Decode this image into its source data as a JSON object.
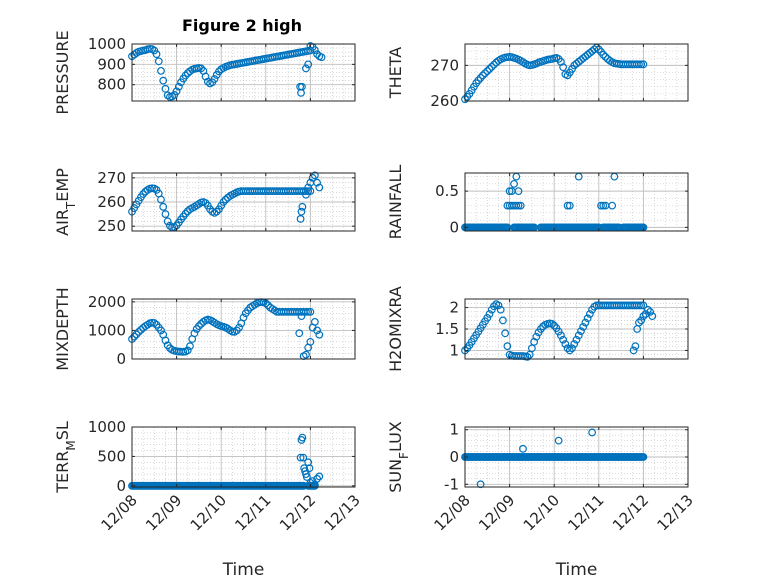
{
  "title": "Figure 2 high",
  "colors": {
    "marker": "#0072bd",
    "axis": "#262626",
    "grid": "#bfbfbf",
    "background": "#ffffff"
  },
  "x_axis": {
    "label": "Time",
    "ticks": [
      "12/08",
      "12/09",
      "12/10",
      "12/11",
      "12/12",
      "12/13"
    ]
  },
  "chart_data": [
    {
      "type": "scatter",
      "ylabel": "PRESSURE",
      "ylim": [
        720,
        1000
      ],
      "yticks": [
        800,
        900,
        1000
      ],
      "grid": true,
      "x": [
        0,
        0.05,
        0.1,
        0.15,
        0.2,
        0.25,
        0.3,
        0.35,
        0.4,
        0.45,
        0.5,
        0.55,
        0.6,
        0.65,
        0.7,
        0.75,
        0.8,
        0.85,
        0.9,
        0.95,
        1.0,
        1.05,
        1.1,
        1.15,
        1.2,
        1.25,
        1.3,
        1.35,
        1.4,
        1.45,
        1.5,
        1.55,
        1.6,
        1.65,
        1.7,
        1.75,
        1.8,
        1.85,
        1.9,
        1.95,
        2.0,
        2.05,
        2.1,
        2.15,
        2.2,
        2.25,
        2.3,
        2.35,
        2.4,
        2.45,
        2.5,
        2.55,
        2.6,
        2.65,
        2.7,
        2.75,
        2.8,
        2.85,
        2.9,
        2.95,
        3.0,
        3.05,
        3.1,
        3.15,
        3.2,
        3.25,
        3.3,
        3.35,
        3.4,
        3.45,
        3.5,
        3.55,
        3.6,
        3.65,
        3.7,
        3.75,
        3.8,
        3.85,
        3.9,
        3.95,
        4.0,
        3.77,
        3.79,
        3.81,
        3.9,
        3.95,
        4.0,
        4.05,
        4.1,
        4.15,
        4.2,
        4.25
      ],
      "y": [
        940,
        948,
        956,
        962,
        965,
        968,
        970,
        974,
        976,
        975,
        968,
        950,
        915,
        868,
        820,
        780,
        748,
        740,
        742,
        750,
        768,
        790,
        812,
        830,
        845,
        857,
        866,
        874,
        878,
        880,
        882,
        880,
        868,
        840,
        815,
        806,
        812,
        828,
        848,
        865,
        876,
        882,
        888,
        892,
        896,
        898,
        900,
        902,
        904,
        906,
        908,
        910,
        912,
        914,
        916,
        918,
        920,
        922,
        924,
        926,
        928,
        930,
        932,
        934,
        936,
        938,
        940,
        942,
        944,
        946,
        948,
        950,
        952,
        954,
        956,
        958,
        960,
        962,
        964,
        966,
        968,
        790,
        760,
        790,
        880,
        900,
        990,
        985,
        970,
        950,
        940,
        935
      ]
    },
    {
      "type": "scatter",
      "ylabel": "THETA",
      "ylim": [
        260,
        276
      ],
      "yticks": [
        260,
        270
      ],
      "grid": true,
      "x": [
        0,
        0.05,
        0.1,
        0.15,
        0.2,
        0.25,
        0.3,
        0.35,
        0.4,
        0.45,
        0.5,
        0.55,
        0.6,
        0.65,
        0.7,
        0.75,
        0.8,
        0.85,
        0.9,
        0.95,
        1.0,
        1.05,
        1.1,
        1.15,
        1.2,
        1.25,
        1.3,
        1.35,
        1.4,
        1.45,
        1.5,
        1.55,
        1.6,
        1.65,
        1.7,
        1.75,
        1.8,
        1.85,
        1.9,
        1.95,
        2.0,
        2.05,
        2.1,
        2.15,
        2.2,
        2.25,
        2.3,
        2.35,
        2.4,
        2.45,
        2.5,
        2.55,
        2.6,
        2.65,
        2.7,
        2.75,
        2.8,
        2.85,
        2.9,
        2.95,
        3.0,
        3.05,
        3.1,
        3.15,
        3.2,
        3.25,
        3.3,
        3.35,
        3.4,
        3.45,
        3.5,
        3.55,
        3.6,
        3.65,
        3.7,
        3.75,
        3.8,
        3.85,
        3.9,
        3.95,
        4.0
      ],
      "y": [
        260.5,
        261.2,
        262,
        263,
        264,
        265,
        265.8,
        266.5,
        267.2,
        267.8,
        268.4,
        269,
        269.6,
        270.2,
        270.8,
        271.3,
        271.7,
        272,
        272.2,
        272.3,
        272.4,
        272.3,
        272.1,
        271.9,
        271.6,
        271.3,
        270.9,
        270.5,
        270.2,
        270,
        270.1,
        270.3,
        270.5,
        270.8,
        271,
        271.2,
        271.4,
        271.6,
        271.7,
        271.8,
        272,
        272.1,
        271.8,
        271,
        269.5,
        267.5,
        267.2,
        268,
        269,
        270,
        270.5,
        271,
        271.5,
        272,
        272.5,
        273,
        273.5,
        274,
        274.5,
        275,
        274.5,
        273.8,
        273,
        272.4,
        271.8,
        271.3,
        270.9,
        270.6,
        270.5,
        270.4,
        270.3,
        270.3,
        270.3,
        270.3,
        270.3,
        270.3,
        270.3,
        270.3,
        270.3,
        270.3,
        270.3
      ]
    },
    {
      "type": "scatter",
      "ylabel": "AIR_TEMP",
      "ylim": [
        248,
        272
      ],
      "yticks": [
        250,
        260,
        270
      ],
      "grid": true,
      "x": [
        0,
        0.05,
        0.1,
        0.15,
        0.2,
        0.25,
        0.3,
        0.35,
        0.4,
        0.45,
        0.5,
        0.55,
        0.6,
        0.65,
        0.7,
        0.75,
        0.8,
        0.85,
        0.9,
        0.95,
        1.0,
        1.05,
        1.1,
        1.15,
        1.2,
        1.25,
        1.3,
        1.35,
        1.4,
        1.45,
        1.5,
        1.55,
        1.6,
        1.65,
        1.7,
        1.75,
        1.8,
        1.85,
        1.9,
        1.95,
        2.0,
        2.05,
        2.1,
        2.15,
        2.2,
        2.25,
        2.3,
        2.35,
        2.4,
        2.45,
        2.5,
        2.55,
        2.6,
        2.65,
        2.7,
        2.75,
        2.8,
        2.85,
        2.9,
        2.95,
        3.0,
        3.05,
        3.1,
        3.15,
        3.2,
        3.25,
        3.3,
        3.35,
        3.4,
        3.45,
        3.5,
        3.55,
        3.6,
        3.65,
        3.7,
        3.75,
        3.8,
        3.85,
        3.9,
        3.95,
        4.0,
        3.78,
        3.8,
        3.82,
        3.9,
        3.95,
        4.0,
        4.05,
        4.1,
        4.15,
        4.2
      ],
      "y": [
        256,
        257.5,
        259,
        260.5,
        262,
        263.3,
        264.3,
        265,
        265.5,
        265.7,
        265.6,
        265,
        263.5,
        261,
        258,
        255,
        252,
        250.2,
        249.5,
        249.6,
        250.3,
        251.5,
        252.8,
        254,
        255.2,
        256.2,
        257,
        257.5,
        258,
        258.6,
        259.2,
        259.8,
        260,
        259.6,
        258.5,
        257,
        256,
        255.5,
        256,
        257,
        258.5,
        260,
        261,
        261.8,
        262.5,
        263,
        263.5,
        264,
        264.3,
        264.5,
        264.5,
        264.5,
        264.5,
        264.5,
        264.5,
        264.5,
        264.5,
        264.5,
        264.5,
        264.5,
        264.5,
        264.5,
        264.5,
        264.5,
        264.5,
        264.5,
        264.5,
        264.5,
        264.5,
        264.5,
        264.5,
        264.5,
        264.5,
        264.5,
        264.5,
        264.5,
        264.5,
        264.5,
        264.5,
        264.5,
        264.5,
        253,
        256,
        258,
        263,
        266,
        268,
        270,
        271,
        268,
        266
      ]
    },
    {
      "type": "scatter",
      "ylabel": "RAINFALL",
      "ylim": [
        -0.05,
        0.75
      ],
      "yticks": [
        0,
        0.5
      ],
      "grid": true,
      "x_zero_ranges": [
        [
          0,
          0.95
        ],
        [
          1.1,
          1.55
        ],
        [
          1.7,
          2.0
        ],
        [
          2.05,
          3.0
        ],
        [
          3.1,
          3.45
        ],
        [
          3.55,
          4.0
        ]
      ],
      "x_points": [
        0.95,
        1.0,
        1.0,
        1.05,
        1.05,
        1.1,
        1.1,
        1.15,
        1.15,
        1.2,
        1.2,
        1.25,
        2.3,
        2.35,
        2.55,
        3.05,
        3.1,
        3.15,
        3.3,
        3.35
      ],
      "y_points": [
        0.3,
        0.3,
        0.5,
        0.3,
        0.5,
        0.3,
        0.6,
        0.3,
        0.7,
        0.3,
        0.5,
        0.3,
        0.3,
        0.3,
        0.7,
        0.3,
        0.3,
        0.3,
        0.3,
        0.7
      ]
    },
    {
      "type": "scatter",
      "ylabel": "MIXDEPTH",
      "ylim": [
        0,
        2100
      ],
      "yticks": [
        0,
        1000,
        2000
      ],
      "grid": true,
      "x": [
        0,
        0.05,
        0.1,
        0.15,
        0.2,
        0.25,
        0.3,
        0.35,
        0.4,
        0.45,
        0.5,
        0.55,
        0.6,
        0.65,
        0.7,
        0.75,
        0.8,
        0.85,
        0.9,
        0.95,
        1.0,
        1.05,
        1.1,
        1.15,
        1.2,
        1.25,
        1.3,
        1.35,
        1.4,
        1.45,
        1.5,
        1.55,
        1.6,
        1.65,
        1.7,
        1.75,
        1.8,
        1.85,
        1.9,
        1.95,
        2.0,
        2.05,
        2.1,
        2.15,
        2.2,
        2.25,
        2.3,
        2.35,
        2.4,
        2.45,
        2.5,
        2.55,
        2.6,
        2.65,
        2.7,
        2.75,
        2.8,
        2.85,
        2.9,
        2.95,
        3.0,
        3.05,
        3.1,
        3.15,
        3.2,
        3.25,
        3.3,
        3.35,
        3.4,
        3.45,
        3.5,
        3.55,
        3.6,
        3.65,
        3.7,
        3.75,
        3.8,
        3.85,
        3.9,
        3.95,
        4.0,
        3.75,
        3.8,
        3.85,
        3.9,
        3.95,
        4.0,
        4.05,
        4.1,
        4.15,
        4.2
      ],
      "y": [
        700,
        780,
        860,
        950,
        1020,
        1090,
        1150,
        1200,
        1250,
        1270,
        1260,
        1200,
        1100,
        1000,
        850,
        650,
        480,
        380,
        320,
        290,
        270,
        260,
        255,
        250,
        260,
        300,
        450,
        700,
        900,
        1050,
        1150,
        1230,
        1300,
        1350,
        1380,
        1360,
        1320,
        1270,
        1220,
        1180,
        1150,
        1130,
        1100,
        1060,
        1000,
        960,
        950,
        1000,
        1100,
        1250,
        1450,
        1600,
        1700,
        1800,
        1850,
        1900,
        1950,
        1980,
        1990,
        1980,
        1950,
        1880,
        1800,
        1750,
        1700,
        1650,
        1650,
        1650,
        1650,
        1650,
        1650,
        1650,
        1650,
        1650,
        1650,
        1650,
        1650,
        1650,
        1650,
        1650,
        1650,
        900,
        1500,
        100,
        150,
        400,
        600,
        1100,
        1300,
        1000,
        850
      ]
    },
    {
      "type": "scatter",
      "ylabel": "H2OMIXRA",
      "ylim": [
        0.8,
        2.2
      ],
      "yticks": [
        1,
        1.5,
        2
      ],
      "grid": true,
      "x": [
        0,
        0.05,
        0.1,
        0.15,
        0.2,
        0.25,
        0.3,
        0.35,
        0.4,
        0.45,
        0.5,
        0.55,
        0.6,
        0.65,
        0.7,
        0.75,
        0.8,
        0.85,
        0.9,
        0.95,
        1.0,
        1.05,
        1.1,
        1.15,
        1.2,
        1.25,
        1.3,
        1.35,
        1.4,
        1.45,
        1.5,
        1.55,
        1.6,
        1.65,
        1.7,
        1.75,
        1.8,
        1.85,
        1.9,
        1.95,
        2.0,
        2.05,
        2.1,
        2.15,
        2.2,
        2.25,
        2.3,
        2.35,
        2.4,
        2.45,
        2.5,
        2.55,
        2.6,
        2.65,
        2.7,
        2.75,
        2.8,
        2.85,
        2.9,
        2.95,
        3.0,
        3.05,
        3.1,
        3.15,
        3.2,
        3.25,
        3.3,
        3.35,
        3.4,
        3.45,
        3.5,
        3.55,
        3.6,
        3.65,
        3.7,
        3.75,
        3.8,
        3.85,
        3.9,
        3.95,
        4.0,
        3.78,
        3.82,
        3.86,
        3.9,
        3.95,
        4.0,
        4.05,
        4.1,
        4.15,
        4.2
      ],
      "y": [
        1.0,
        1.05,
        1.12,
        1.2,
        1.28,
        1.36,
        1.44,
        1.52,
        1.6,
        1.68,
        1.76,
        1.85,
        1.95,
        2.03,
        2.08,
        2.05,
        1.95,
        1.7,
        1.4,
        1.1,
        0.9,
        0.88,
        0.87,
        0.87,
        0.87,
        0.87,
        0.87,
        0.86,
        0.85,
        0.9,
        1.05,
        1.2,
        1.32,
        1.42,
        1.5,
        1.56,
        1.6,
        1.62,
        1.63,
        1.62,
        1.58,
        1.52,
        1.44,
        1.35,
        1.25,
        1.15,
        1.05,
        1.0,
        1.05,
        1.15,
        1.25,
        1.35,
        1.45,
        1.55,
        1.65,
        1.75,
        1.85,
        1.95,
        2.02,
        2.05,
        2.05,
        2.05,
        2.05,
        2.05,
        2.05,
        2.05,
        2.05,
        2.05,
        2.05,
        2.05,
        2.05,
        2.05,
        2.05,
        2.05,
        2.05,
        2.05,
        2.05,
        2.05,
        2.05,
        2.05,
        2.05,
        1.0,
        1.1,
        1.5,
        1.65,
        1.7,
        1.8,
        1.85,
        1.95,
        1.9,
        1.8
      ]
    },
    {
      "type": "scatter",
      "ylabel": "TERR_MSL",
      "ylim": [
        -20,
        1000
      ],
      "yticks": [
        0,
        500,
        1000
      ],
      "grid": true,
      "x_zero_ranges": [
        [
          0,
          3.85
        ],
        [
          3.95,
          4.1
        ]
      ],
      "x_points": [
        3.78,
        3.8,
        3.82,
        3.84,
        3.86,
        3.88,
        3.9,
        3.92,
        3.95,
        3.98,
        4.0,
        4.05,
        4.1,
        4.15,
        4.2
      ],
      "y_points": [
        480,
        780,
        820,
        480,
        300,
        250,
        200,
        150,
        400,
        300,
        50,
        80,
        20,
        120,
        160
      ]
    },
    {
      "type": "scatter",
      "ylabel": "SUN_FLUX",
      "ylim": [
        -1.1,
        1.1
      ],
      "yticks": [
        -1,
        0,
        1
      ],
      "grid": true,
      "x_zero_ranges": [
        [
          0,
          4.0
        ]
      ],
      "x_points": [
        0.35,
        1.3,
        2.1,
        2.85
      ],
      "y_points": [
        -1,
        0.3,
        0.6,
        0.9
      ]
    }
  ]
}
